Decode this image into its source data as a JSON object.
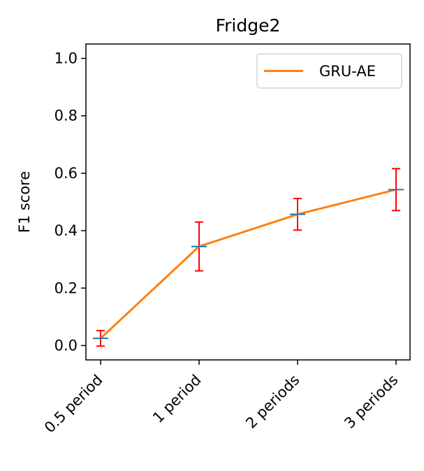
{
  "chart_data": {
    "type": "line",
    "title": "Fridge2",
    "xlabel": "",
    "ylabel": "F1 score",
    "categories": [
      "0.5 period",
      "1 period",
      "2 periods",
      "3 periods"
    ],
    "series": [
      {
        "name": "GRU-AE",
        "values": [
          0.025,
          0.345,
          0.457,
          0.543
        ],
        "error": [
          0.027,
          0.085,
          0.055,
          0.073
        ],
        "color": "#ff7f0e",
        "marker_color": "#1f77b4",
        "errorbar_color": "#ff0000"
      }
    ],
    "ylim": [
      -0.05,
      1.05
    ],
    "yticks": [
      0.0,
      0.2,
      0.4,
      0.6,
      0.8,
      1.0
    ],
    "ytick_labels": [
      "0.0",
      "0.2",
      "0.4",
      "0.6",
      "0.8",
      "1.0"
    ],
    "grid": false,
    "legend_position": "top-right"
  }
}
